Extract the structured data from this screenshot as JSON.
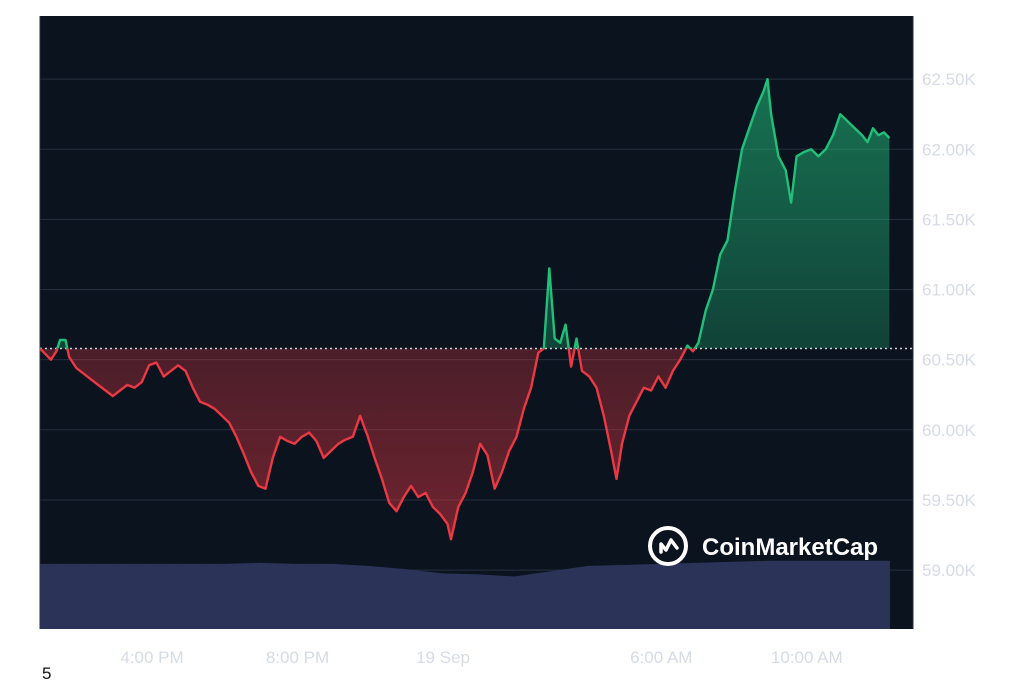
{
  "footnote": "5",
  "watermark": {
    "text": "CoinMarketCap"
  },
  "colors": {
    "background": "#0b131f",
    "grid": "#26303f",
    "up": "#21c07a",
    "down": "#ea3943",
    "baseline": "#c9ced8",
    "volume": "#2b3458",
    "label": "#d6dbe6"
  },
  "chart_data": {
    "type": "area",
    "title": "",
    "xlabel": "",
    "ylabel": "",
    "baseline": 60580,
    "ylim": [
      58580,
      62950
    ],
    "grid": true,
    "y_ticks": [
      {
        "value": 62500,
        "label": "62.50K"
      },
      {
        "value": 62000,
        "label": "62.00K"
      },
      {
        "value": 61500,
        "label": "61.50K"
      },
      {
        "value": 61000,
        "label": "61.00K"
      },
      {
        "value": 60500,
        "label": "60.50K"
      },
      {
        "value": 60000,
        "label": "60.00K"
      },
      {
        "value": 59500,
        "label": "59.50K"
      },
      {
        "value": 59000,
        "label": "59.00K"
      }
    ],
    "x_ticks": [
      {
        "x": 3.08,
        "label": "4:00 PM"
      },
      {
        "x": 7.08,
        "label": "8:00 PM"
      },
      {
        "x": 11.08,
        "label": "19 Sep"
      },
      {
        "x": 17.08,
        "label": "6:00 AM"
      },
      {
        "x": 21.08,
        "label": "10:00 AM"
      }
    ],
    "xlim": [
      0,
      24
    ],
    "series": [
      {
        "values": [
          [
            0.0,
            60580
          ],
          [
            0.3,
            60500
          ],
          [
            0.45,
            60560
          ],
          [
            0.55,
            60640
          ],
          [
            0.7,
            60640
          ],
          [
            0.8,
            60520
          ],
          [
            1.0,
            60440
          ],
          [
            1.2,
            60400
          ],
          [
            1.4,
            60360
          ],
          [
            1.6,
            60320
          ],
          [
            1.8,
            60280
          ],
          [
            2.0,
            60240
          ],
          [
            2.2,
            60280
          ],
          [
            2.4,
            60320
          ],
          [
            2.6,
            60300
          ],
          [
            2.8,
            60340
          ],
          [
            3.0,
            60460
          ],
          [
            3.2,
            60480
          ],
          [
            3.4,
            60380
          ],
          [
            3.6,
            60420
          ],
          [
            3.8,
            60460
          ],
          [
            4.0,
            60420
          ],
          [
            4.2,
            60300
          ],
          [
            4.4,
            60200
          ],
          [
            4.6,
            60180
          ],
          [
            4.8,
            60150
          ],
          [
            5.0,
            60100
          ],
          [
            5.2,
            60050
          ],
          [
            5.4,
            59950
          ],
          [
            5.6,
            59830
          ],
          [
            5.8,
            59700
          ],
          [
            6.0,
            59600
          ],
          [
            6.2,
            59580
          ],
          [
            6.4,
            59800
          ],
          [
            6.6,
            59950
          ],
          [
            6.8,
            59920
          ],
          [
            7.0,
            59900
          ],
          [
            7.2,
            59950
          ],
          [
            7.4,
            59980
          ],
          [
            7.6,
            59920
          ],
          [
            7.8,
            59800
          ],
          [
            8.0,
            59850
          ],
          [
            8.2,
            59900
          ],
          [
            8.4,
            59930
          ],
          [
            8.6,
            59950
          ],
          [
            8.8,
            60100
          ],
          [
            9.0,
            59960
          ],
          [
            9.2,
            59800
          ],
          [
            9.4,
            59650
          ],
          [
            9.6,
            59480
          ],
          [
            9.8,
            59420
          ],
          [
            10.0,
            59520
          ],
          [
            10.2,
            59600
          ],
          [
            10.4,
            59520
          ],
          [
            10.6,
            59550
          ],
          [
            10.8,
            59450
          ],
          [
            11.0,
            59400
          ],
          [
            11.2,
            59330
          ],
          [
            11.3,
            59220
          ],
          [
            11.5,
            59450
          ],
          [
            11.7,
            59550
          ],
          [
            11.9,
            59700
          ],
          [
            12.1,
            59900
          ],
          [
            12.3,
            59820
          ],
          [
            12.5,
            59580
          ],
          [
            12.7,
            59700
          ],
          [
            12.9,
            59850
          ],
          [
            13.1,
            59950
          ],
          [
            13.3,
            60150
          ],
          [
            13.5,
            60300
          ],
          [
            13.7,
            60550
          ],
          [
            13.85,
            60580
          ],
          [
            14.0,
            61150
          ],
          [
            14.15,
            60650
          ],
          [
            14.3,
            60620
          ],
          [
            14.45,
            60750
          ],
          [
            14.6,
            60450
          ],
          [
            14.75,
            60650
          ],
          [
            14.9,
            60420
          ],
          [
            15.1,
            60380
          ],
          [
            15.3,
            60300
          ],
          [
            15.5,
            60100
          ],
          [
            15.7,
            59850
          ],
          [
            15.85,
            59650
          ],
          [
            16.0,
            59900
          ],
          [
            16.2,
            60100
          ],
          [
            16.4,
            60200
          ],
          [
            16.6,
            60300
          ],
          [
            16.8,
            60280
          ],
          [
            17.0,
            60380
          ],
          [
            17.2,
            60300
          ],
          [
            17.4,
            60420
          ],
          [
            17.6,
            60500
          ],
          [
            17.8,
            60600
          ],
          [
            17.95,
            60560
          ],
          [
            18.1,
            60620
          ],
          [
            18.3,
            60850
          ],
          [
            18.5,
            61000
          ],
          [
            18.7,
            61250
          ],
          [
            18.9,
            61350
          ],
          [
            19.1,
            61700
          ],
          [
            19.3,
            62000
          ],
          [
            19.5,
            62150
          ],
          [
            19.7,
            62300
          ],
          [
            19.9,
            62420
          ],
          [
            20.0,
            62500
          ],
          [
            20.1,
            62250
          ],
          [
            20.3,
            61950
          ],
          [
            20.5,
            61850
          ],
          [
            20.65,
            61620
          ],
          [
            20.8,
            61950
          ],
          [
            21.0,
            61980
          ],
          [
            21.2,
            62000
          ],
          [
            21.4,
            61950
          ],
          [
            21.6,
            62000
          ],
          [
            21.8,
            62100
          ],
          [
            22.0,
            62250
          ],
          [
            22.2,
            62200
          ],
          [
            22.4,
            62150
          ],
          [
            22.6,
            62100
          ],
          [
            22.75,
            62050
          ],
          [
            22.9,
            62150
          ],
          [
            23.05,
            62100
          ],
          [
            23.2,
            62120
          ],
          [
            23.35,
            62080
          ]
        ]
      }
    ],
    "volume": {
      "x": [
        0,
        1,
        2,
        3,
        4,
        5,
        6,
        7,
        8,
        9,
        10,
        11,
        12,
        13,
        14,
        15,
        16,
        17,
        18,
        19,
        20,
        21,
        22,
        23,
        23.35
      ],
      "values": [
        0.62,
        0.62,
        0.62,
        0.62,
        0.62,
        0.62,
        0.63,
        0.62,
        0.62,
        0.6,
        0.57,
        0.53,
        0.52,
        0.5,
        0.55,
        0.6,
        0.61,
        0.62,
        0.63,
        0.64,
        0.65,
        0.65,
        0.65,
        0.65,
        0.65
      ],
      "max": 1
    }
  }
}
